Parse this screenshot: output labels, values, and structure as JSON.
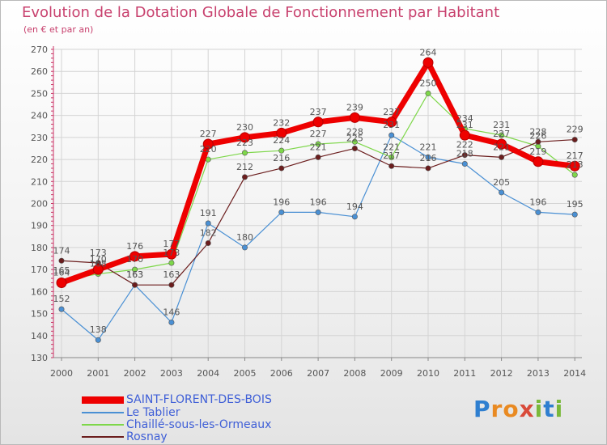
{
  "chart_data": {
    "type": "line",
    "title": "Evolution de la Dotation Globale de Fonctionnement par Habitant",
    "subtitle": "(en € et par an)",
    "xlabel": "",
    "ylabel": "",
    "ylim": [
      130,
      270
    ],
    "yticks": [
      130,
      140,
      150,
      160,
      170,
      180,
      190,
      200,
      210,
      220,
      230,
      240,
      250,
      260,
      270
    ],
    "categories": [
      "2000",
      "2001",
      "2002",
      "2003",
      "2004",
      "2005",
      "2006",
      "2007",
      "2008",
      "2009",
      "2010",
      "2011",
      "2012",
      "2013",
      "2014"
    ],
    "series": [
      {
        "name": "Le Tablier",
        "color": "#4a90d4",
        "values": [
          152,
          138,
          163,
          146,
          191,
          180,
          196,
          196,
          194,
          231,
          221,
          218,
          205,
          196,
          195
        ]
      },
      {
        "name": "Chaillé-sous-les-Ormeaux",
        "color": "#7ed74a",
        "values": [
          165,
          168,
          170,
          173,
          220,
          223,
          224,
          227,
          228,
          221,
          250,
          234,
          231,
          226,
          213
        ]
      },
      {
        "name": "Rosnay",
        "color": "#6b1d1d",
        "values": [
          174,
          173,
          163,
          163,
          182,
          212,
          216,
          221,
          225,
          217,
          216,
          222,
          221,
          228,
          229
        ]
      },
      {
        "name": "SAINT-FLORENT-DES-BOIS",
        "color": "#ee0000",
        "values": [
          164,
          170,
          176,
          177,
          227,
          230,
          232,
          237,
          239,
          237,
          264,
          231,
          227,
          219,
          217
        ]
      }
    ],
    "legend": "bottom-left",
    "grid": true
  },
  "branding": {
    "logo_text": "Proxiti"
  }
}
